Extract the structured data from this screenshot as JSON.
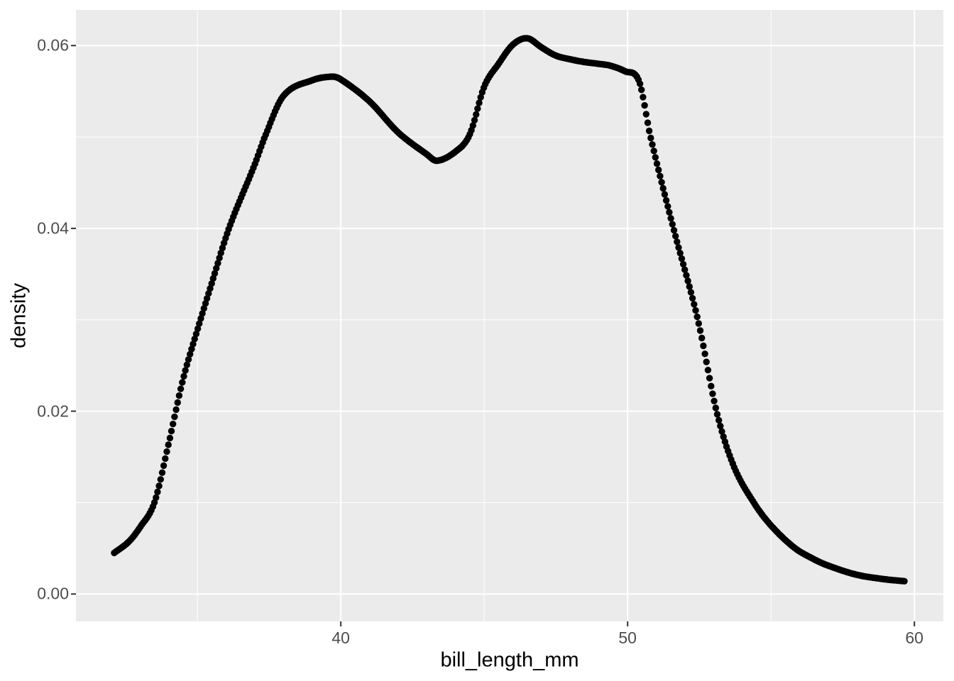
{
  "chart_data": {
    "type": "line",
    "subtype": "kernel-density-curve-drawn-as-points",
    "title": "",
    "xlabel": "bill_length_mm",
    "ylabel": "density",
    "xlim": [
      30.765,
      61.01
    ],
    "ylim": [
      -0.003,
      0.0639
    ],
    "x_ticks": [
      {
        "value": 40,
        "label": "40"
      },
      {
        "value": 50,
        "label": "50"
      },
      {
        "value": 60,
        "label": "60"
      }
    ],
    "x_minor_ticks": [
      35,
      45,
      55
    ],
    "y_ticks": [
      {
        "value": 0.0,
        "label": "0.00"
      },
      {
        "value": 0.02,
        "label": "0.02"
      },
      {
        "value": 0.04,
        "label": "0.04"
      },
      {
        "value": 0.06,
        "label": "0.06"
      }
    ],
    "y_minor_ticks": [
      0.01,
      0.03,
      0.05
    ],
    "grid": "on",
    "legend": "none",
    "series": [
      {
        "name": "density",
        "marker": "filled-circle",
        "color": "#000000",
        "x_range": [
          32.1,
          59.65
        ],
        "points": [
          [
            32.1,
            0.0045
          ],
          [
            32.6,
            0.0057
          ],
          [
            33.0,
            0.0073
          ],
          [
            33.5,
            0.01
          ],
          [
            34.0,
            0.0165
          ],
          [
            34.5,
            0.0235
          ],
          [
            35.0,
            0.0289
          ],
          [
            35.5,
            0.034
          ],
          [
            36.1,
            0.04
          ],
          [
            37.0,
            0.047
          ],
          [
            37.35,
            0.05
          ],
          [
            38.0,
            0.0545
          ],
          [
            39.0,
            0.0562
          ],
          [
            39.7,
            0.0566
          ],
          [
            40.0,
            0.0563
          ],
          [
            41.0,
            0.0539
          ],
          [
            42.0,
            0.0505
          ],
          [
            43.0,
            0.0481
          ],
          [
            43.35,
            0.0474
          ],
          [
            44.0,
            0.0484
          ],
          [
            44.5,
            0.0503
          ],
          [
            45.0,
            0.0555
          ],
          [
            45.5,
            0.058
          ],
          [
            46.0,
            0.0601
          ],
          [
            46.5,
            0.0608
          ],
          [
            47.0,
            0.0598
          ],
          [
            47.5,
            0.0589
          ],
          [
            48.0,
            0.0585
          ],
          [
            48.5,
            0.0582
          ],
          [
            49.0,
            0.058
          ],
          [
            49.4,
            0.0578
          ],
          [
            49.9,
            0.0572
          ],
          [
            50.4,
            0.0561
          ],
          [
            50.8,
            0.05
          ],
          [
            51.6,
            0.04
          ],
          [
            52.45,
            0.03
          ],
          [
            53.1,
            0.02
          ],
          [
            53.7,
            0.014
          ],
          [
            54.4,
            0.01
          ],
          [
            55.0,
            0.0075
          ],
          [
            55.8,
            0.0051
          ],
          [
            56.5,
            0.0038
          ],
          [
            57.0,
            0.0031
          ],
          [
            58.0,
            0.0021
          ],
          [
            59.0,
            0.0016
          ],
          [
            59.65,
            0.0014
          ]
        ]
      }
    ],
    "colors": {
      "panel_background": "#EBEBEB",
      "grid_major": "#FFFFFF",
      "grid_minor": "#FFFFFF",
      "tick_mark": "#333333",
      "tick_label": "#4D4D4D",
      "axis_title": "#000000",
      "point": "#000000",
      "figure_background": "#FFFFFF"
    }
  }
}
